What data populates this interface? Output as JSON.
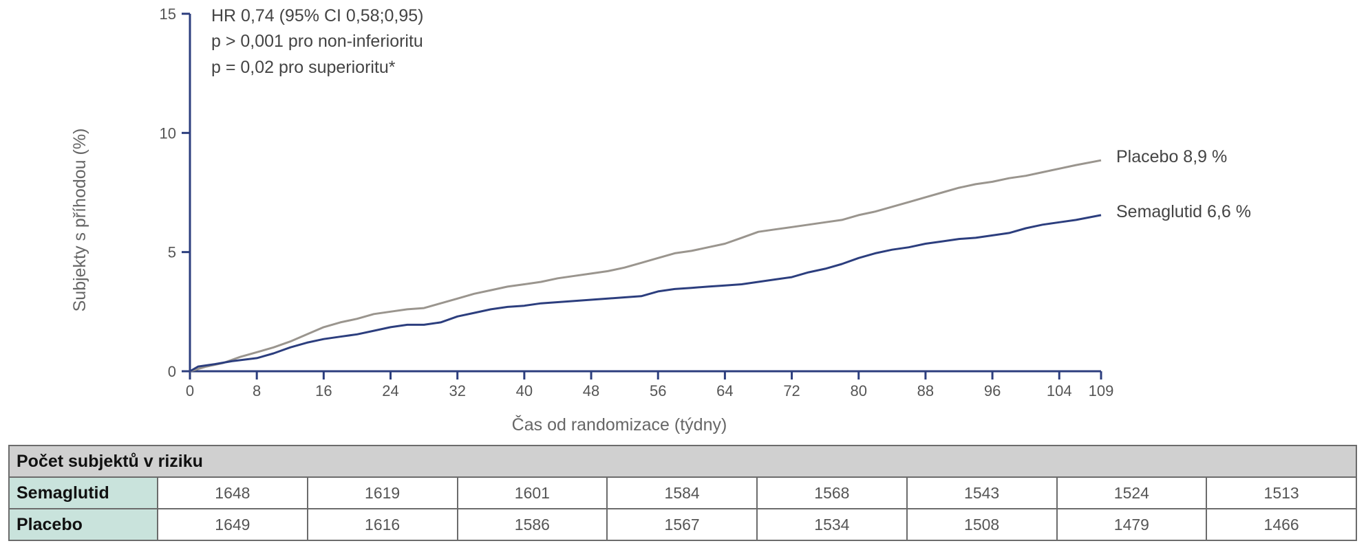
{
  "chart_data": {
    "type": "line",
    "xlabel": "Čas od randomizace (týdny)",
    "ylabel": "Subjekty s příhodou (%)",
    "xlim": [
      0,
      109
    ],
    "ylim": [
      0,
      15
    ],
    "x_ticks": [
      "0",
      "8",
      "16",
      "24",
      "32",
      "40",
      "48",
      "56",
      "64",
      "72",
      "80",
      "88",
      "96",
      "104",
      "109"
    ],
    "y_ticks": [
      "0",
      "5",
      "10",
      "15"
    ],
    "annotations": [
      "HR 0,74 (95% CI 0,58;0,95)",
      "p > 0,001 pro non-inferioritu",
      "p = 0,02 pro superioritu*"
    ],
    "series": [
      {
        "name": "Placebo",
        "end_label": "Placebo 8,9 %",
        "color": "#9a958e",
        "points": [
          [
            0,
            0
          ],
          [
            2,
            0.2
          ],
          [
            4,
            0.35
          ],
          [
            6,
            0.6
          ],
          [
            8,
            0.8
          ],
          [
            10,
            1.0
          ],
          [
            12,
            1.25
          ],
          [
            14,
            1.55
          ],
          [
            16,
            1.85
          ],
          [
            18,
            2.05
          ],
          [
            20,
            2.2
          ],
          [
            22,
            2.4
          ],
          [
            24,
            2.5
          ],
          [
            26,
            2.6
          ],
          [
            28,
            2.65
          ],
          [
            30,
            2.85
          ],
          [
            32,
            3.05
          ],
          [
            34,
            3.25
          ],
          [
            36,
            3.4
          ],
          [
            38,
            3.55
          ],
          [
            40,
            3.65
          ],
          [
            42,
            3.75
          ],
          [
            44,
            3.9
          ],
          [
            46,
            4.0
          ],
          [
            48,
            4.1
          ],
          [
            50,
            4.2
          ],
          [
            52,
            4.35
          ],
          [
            54,
            4.55
          ],
          [
            56,
            4.75
          ],
          [
            58,
            4.95
          ],
          [
            60,
            5.05
          ],
          [
            62,
            5.2
          ],
          [
            64,
            5.35
          ],
          [
            66,
            5.6
          ],
          [
            68,
            5.85
          ],
          [
            70,
            5.95
          ],
          [
            72,
            6.05
          ],
          [
            74,
            6.15
          ],
          [
            76,
            6.25
          ],
          [
            78,
            6.35
          ],
          [
            80,
            6.55
          ],
          [
            82,
            6.7
          ],
          [
            84,
            6.9
          ],
          [
            86,
            7.1
          ],
          [
            88,
            7.3
          ],
          [
            90,
            7.5
          ],
          [
            92,
            7.7
          ],
          [
            94,
            7.85
          ],
          [
            96,
            7.95
          ],
          [
            98,
            8.1
          ],
          [
            100,
            8.2
          ],
          [
            102,
            8.35
          ],
          [
            104,
            8.5
          ],
          [
            106,
            8.65
          ],
          [
            109,
            8.85
          ]
        ]
      },
      {
        "name": "Semaglutid",
        "end_label": "Semaglutid 6,6 %",
        "color": "#2c3e7e",
        "points": [
          [
            0,
            0
          ],
          [
            1,
            0.2
          ],
          [
            3,
            0.3
          ],
          [
            5,
            0.42
          ],
          [
            8,
            0.55
          ],
          [
            10,
            0.75
          ],
          [
            12,
            1.0
          ],
          [
            14,
            1.2
          ],
          [
            16,
            1.35
          ],
          [
            18,
            1.45
          ],
          [
            20,
            1.55
          ],
          [
            22,
            1.7
          ],
          [
            24,
            1.85
          ],
          [
            26,
            1.95
          ],
          [
            28,
            1.95
          ],
          [
            30,
            2.05
          ],
          [
            32,
            2.3
          ],
          [
            34,
            2.45
          ],
          [
            36,
            2.6
          ],
          [
            38,
            2.7
          ],
          [
            40,
            2.75
          ],
          [
            42,
            2.85
          ],
          [
            44,
            2.9
          ],
          [
            46,
            2.95
          ],
          [
            48,
            3.0
          ],
          [
            50,
            3.05
          ],
          [
            52,
            3.1
          ],
          [
            54,
            3.15
          ],
          [
            56,
            3.35
          ],
          [
            58,
            3.45
          ],
          [
            60,
            3.5
          ],
          [
            62,
            3.55
          ],
          [
            64,
            3.6
          ],
          [
            66,
            3.65
          ],
          [
            68,
            3.75
          ],
          [
            70,
            3.85
          ],
          [
            72,
            3.95
          ],
          [
            74,
            4.15
          ],
          [
            76,
            4.3
          ],
          [
            78,
            4.5
          ],
          [
            80,
            4.75
          ],
          [
            82,
            4.95
          ],
          [
            84,
            5.1
          ],
          [
            86,
            5.2
          ],
          [
            88,
            5.35
          ],
          [
            90,
            5.45
          ],
          [
            92,
            5.55
          ],
          [
            94,
            5.6
          ],
          [
            96,
            5.7
          ],
          [
            98,
            5.8
          ],
          [
            100,
            6.0
          ],
          [
            102,
            6.15
          ],
          [
            104,
            6.25
          ],
          [
            106,
            6.35
          ],
          [
            109,
            6.55
          ]
        ]
      }
    ],
    "risk_table": {
      "title": "Počet subjektů v riziku",
      "rows": [
        {
          "label": "Semaglutid",
          "values": [
            "1648",
            "1619",
            "1601",
            "1584",
            "1568",
            "1543",
            "1524",
            "1513"
          ]
        },
        {
          "label": "Placebo",
          "values": [
            "1649",
            "1616",
            "1586",
            "1567",
            "1534",
            "1508",
            "1479",
            "1466"
          ]
        }
      ]
    }
  }
}
